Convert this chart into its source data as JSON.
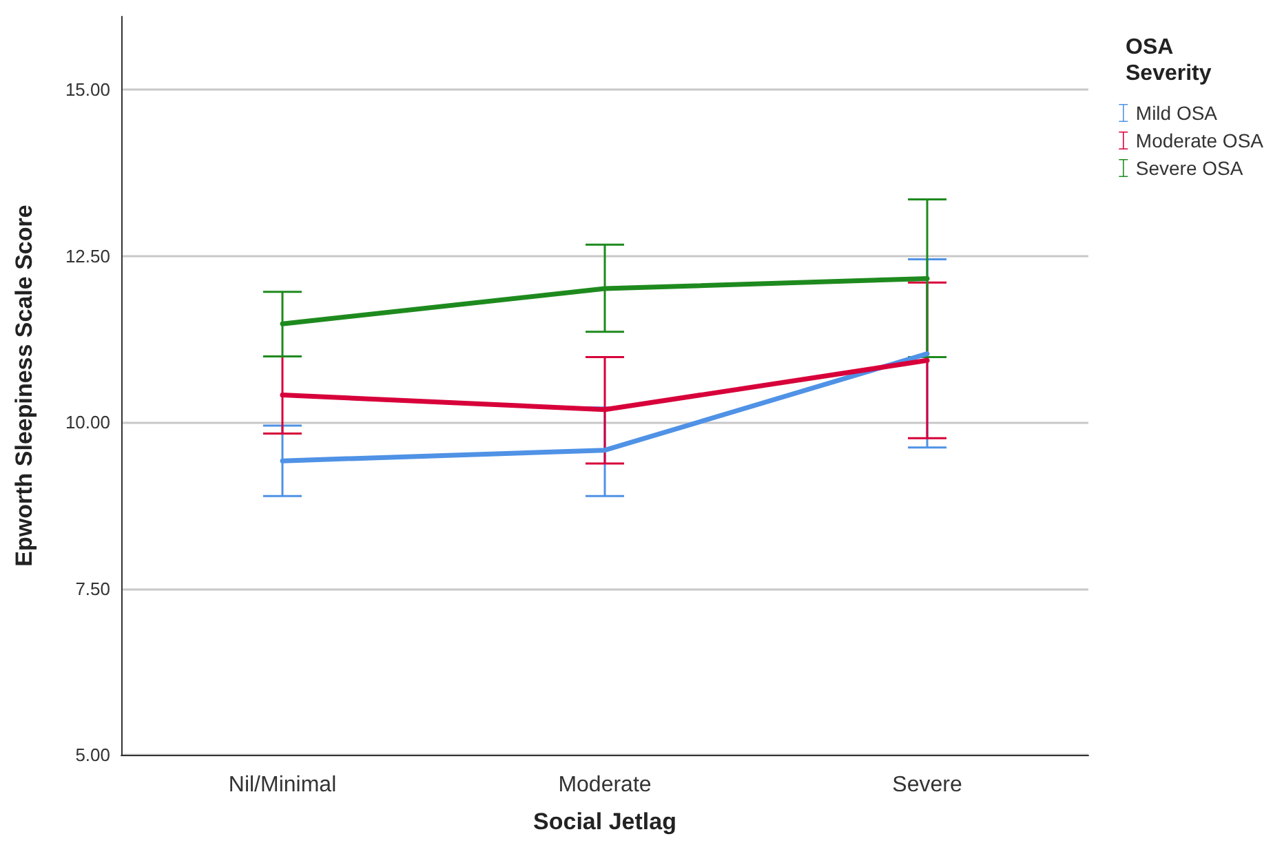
{
  "chart_data": {
    "type": "line",
    "xlabel": "Social Jetlag",
    "ylabel": "Epworth Sleepiness Scale Score",
    "legend_title": "OSA Severity",
    "categories": [
      "Nil/Minimal",
      "Moderate",
      "Severe"
    ],
    "series": [
      {
        "name": "Mild OSA",
        "color": "#4f92e6",
        "values": [
          9.42,
          9.58,
          11.03
        ],
        "errors": [
          [
            8.89,
            9.95
          ],
          [
            8.89,
            10.22
          ],
          [
            9.62,
            12.45
          ]
        ]
      },
      {
        "name": "Moderate OSA",
        "color": "#d7003a",
        "values": [
          10.41,
          10.19,
          10.93
        ],
        "errors": [
          [
            9.83,
            10.99
          ],
          [
            9.38,
            10.98
          ],
          [
            9.76,
            12.1
          ]
        ]
      },
      {
        "name": "Severe OSA",
        "color": "#1e8a1e",
        "values": [
          11.48,
          12.01,
          12.16
        ],
        "errors": [
          [
            10.99,
            11.96
          ],
          [
            11.36,
            12.67
          ],
          [
            10.98,
            13.35
          ]
        ]
      }
    ],
    "ylim": [
      5,
      16.1
    ],
    "yticks": [
      {
        "value": 5,
        "label": "5.00"
      },
      {
        "value": 7.5,
        "label": "7.50"
      },
      {
        "value": 10,
        "label": "10.00"
      },
      {
        "value": 12.5,
        "label": "12.50"
      },
      {
        "value": 15,
        "label": "15.00"
      }
    ],
    "grid": "y",
    "legend": "top right",
    "marker": "none",
    "line_style": "solid"
  }
}
